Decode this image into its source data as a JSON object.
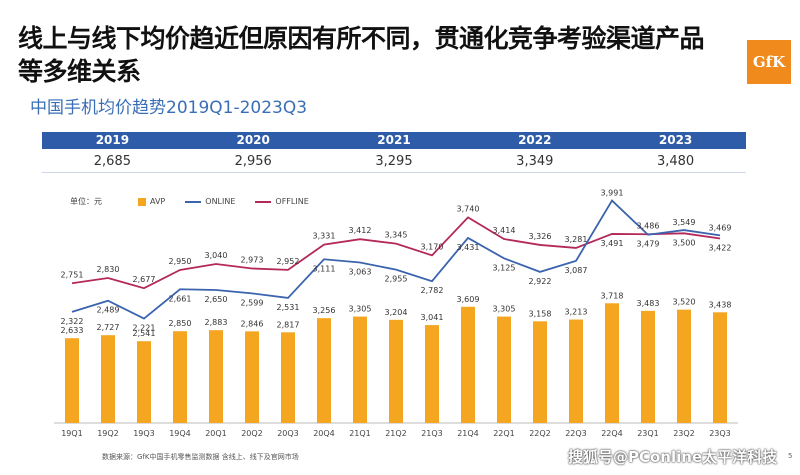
{
  "headline": "线上与线下均价趋近但原因有所不同，贯通化竞争考验渠道产品等多维关系",
  "subtitle": "中国手机均价趋势2019Q1-2023Q3",
  "logo_text": "GfK",
  "years": [
    "2019",
    "2020",
    "2021",
    "2022",
    "2023"
  ],
  "year_avgs": [
    "2,685",
    "2,956",
    "3,295",
    "3,349",
    "3,480"
  ],
  "legend": {
    "unit": "单位：元",
    "items": [
      "AVP",
      "ONLINE",
      "OFFLINE"
    ]
  },
  "colors": {
    "avp": "#f4a620",
    "online": "#3a64ad",
    "offline": "#b4285a",
    "band": "#2f5ca8"
  },
  "chart_data": {
    "type": "bar",
    "categories": [
      "19Q1",
      "19Q2",
      "19Q3",
      "19Q4",
      "20Q1",
      "20Q2",
      "20Q3",
      "20Q4",
      "21Q1",
      "21Q2",
      "21Q3",
      "21Q4",
      "22Q1",
      "22Q2",
      "22Q3",
      "22Q4",
      "23Q1",
      "23Q2",
      "23Q3"
    ],
    "series": [
      {
        "name": "AVP",
        "type": "bar",
        "values": [
          2633,
          2727,
          2541,
          2850,
          2883,
          2846,
          2817,
          3256,
          3305,
          3204,
          3041,
          3609,
          3305,
          3158,
          3213,
          3718,
          3483,
          3520,
          3438
        ]
      },
      {
        "name": "ONLINE",
        "type": "line",
        "values": [
          2322,
          2489,
          2221,
          2661,
          2650,
          2599,
          2531,
          3111,
          3063,
          2955,
          2782,
          3431,
          3125,
          2922,
          3087,
          3991,
          3479,
          3549,
          3469
        ]
      },
      {
        "name": "OFFLINE",
        "type": "line",
        "values": [
          2751,
          2830,
          2677,
          2950,
          3040,
          2973,
          2952,
          3331,
          3412,
          3345,
          3170,
          3740,
          3414,
          3326,
          3281,
          3491,
          3486,
          3500,
          3422
        ]
      }
    ]
  },
  "source": "数据来源：GfK中国手机零售监测数据 含线上、线下及官网市场",
  "watermark": "搜狐号@PConline太平洋科技",
  "page_number": "5"
}
